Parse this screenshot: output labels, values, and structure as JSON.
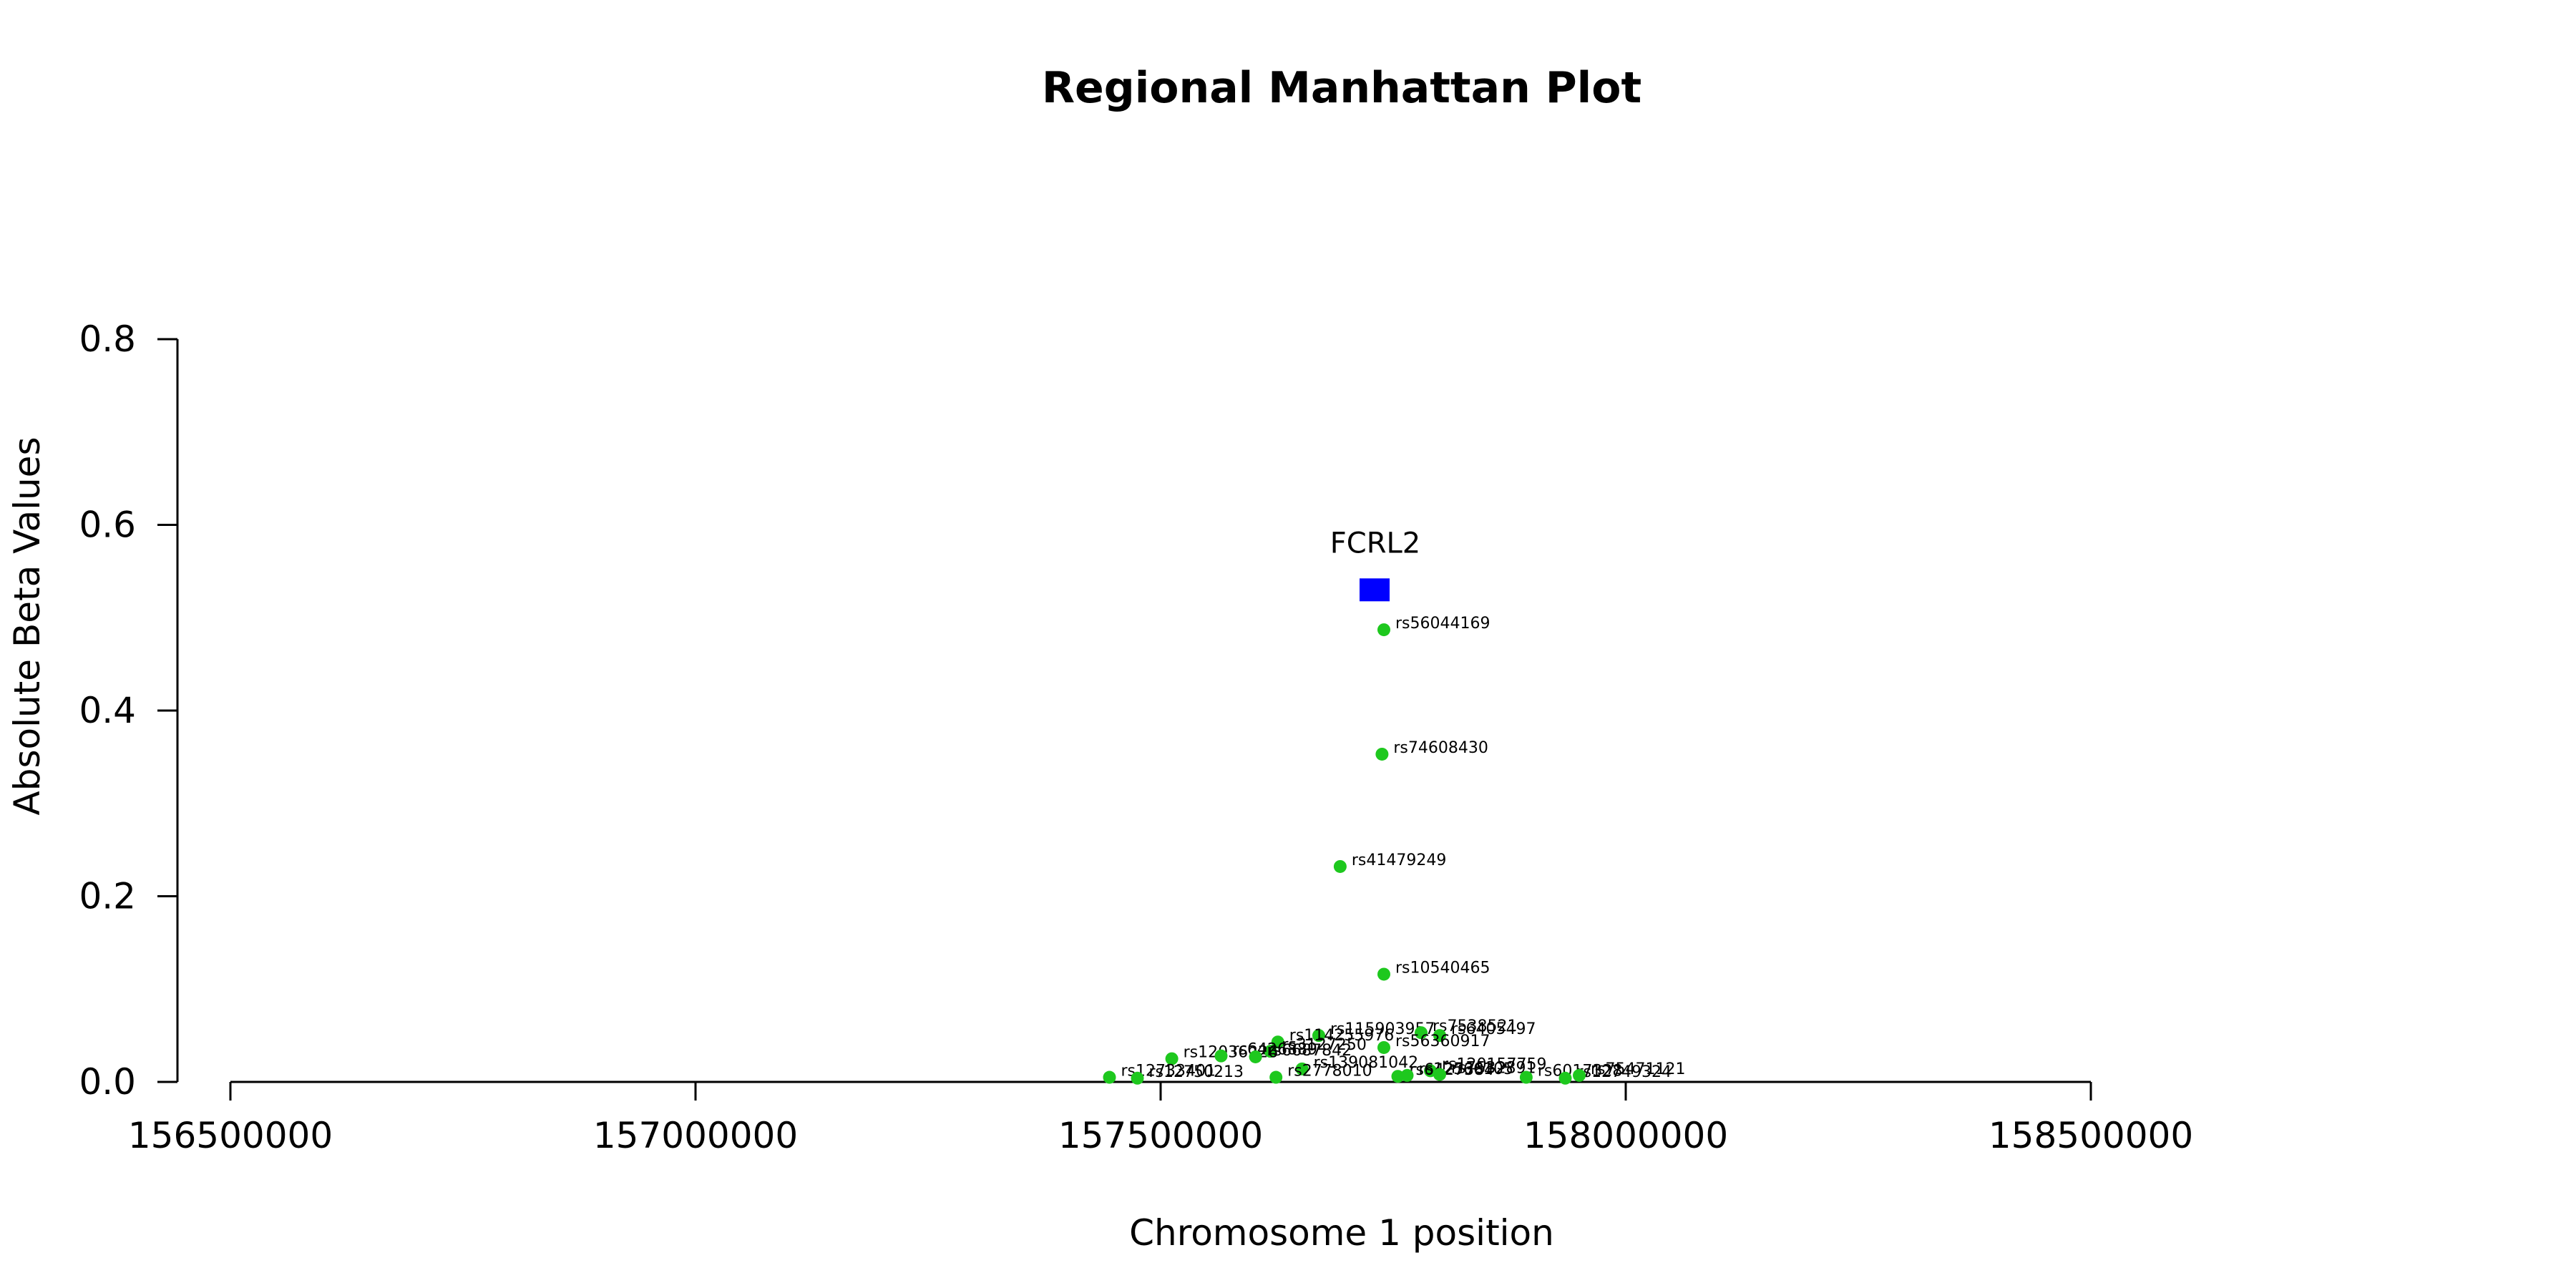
{
  "chart_data": {
    "type": "scatter",
    "title": "Regional Manhattan Plot",
    "xlabel": "Chromosome 1 position",
    "ylabel": "Absolute Beta Values",
    "xlim": [
      156500000,
      158500000
    ],
    "ylim": [
      0,
      0.8
    ],
    "x_ticks": [
      "156500000",
      "157000000",
      "157500000",
      "158000000",
      "158500000"
    ],
    "y_ticks": [
      "0.0",
      "0.2",
      "0.4",
      "0.6",
      "0.8"
    ],
    "grid": false,
    "gene": {
      "name": "FCRL2",
      "x": 157730000,
      "y": 0.53,
      "color": "#0000ff"
    },
    "snp_color": "#1ec81e",
    "snps": [
      {
        "label": "rs56044169",
        "x": 157740000,
        "y": 0.487
      },
      {
        "label": "rs74608430",
        "x": 157738000,
        "y": 0.353
      },
      {
        "label": "rs41479249",
        "x": 157693000,
        "y": 0.232
      },
      {
        "label": "rs10540465",
        "x": 157740000,
        "y": 0.116
      },
      {
        "label": "rs115903957",
        "x": 157670000,
        "y": 0.05
      },
      {
        "label": "rs7538521",
        "x": 157780000,
        "y": 0.053
      },
      {
        "label": "rs6405497",
        "x": 157800000,
        "y": 0.05
      },
      {
        "label": "rs114255976",
        "x": 157626000,
        "y": 0.043
      },
      {
        "label": "rs56360917",
        "x": 157740000,
        "y": 0.037
      },
      {
        "label": "rs3127250",
        "x": 157618000,
        "y": 0.033
      },
      {
        "label": "rs12036226",
        "x": 157512000,
        "y": 0.025
      },
      {
        "label": "rs6426889",
        "x": 157565000,
        "y": 0.028
      },
      {
        "label": "rs6687842",
        "x": 157602000,
        "y": 0.027
      },
      {
        "label": "rs139081042",
        "x": 157652000,
        "y": 0.014
      },
      {
        "label": "rs120157759",
        "x": 157790000,
        "y": 0.012
      },
      {
        "label": "rs12733401",
        "x": 157445000,
        "y": 0.005
      },
      {
        "label": "rs12750213",
        "x": 157475000,
        "y": 0.004
      },
      {
        "label": "rs2778010",
        "x": 157624000,
        "y": 0.005
      },
      {
        "label": "rs6427384",
        "x": 157755000,
        "y": 0.006
      },
      {
        "label": "rs12566105",
        "x": 157765000,
        "y": 0.007
      },
      {
        "label": "rs7532891",
        "x": 157800000,
        "y": 0.008
      },
      {
        "label": "rs6017328",
        "x": 157893000,
        "y": 0.005
      },
      {
        "label": "rs12749324",
        "x": 157935000,
        "y": 0.004
      },
      {
        "label": "rs75471121",
        "x": 157950000,
        "y": 0.007
      }
    ]
  }
}
